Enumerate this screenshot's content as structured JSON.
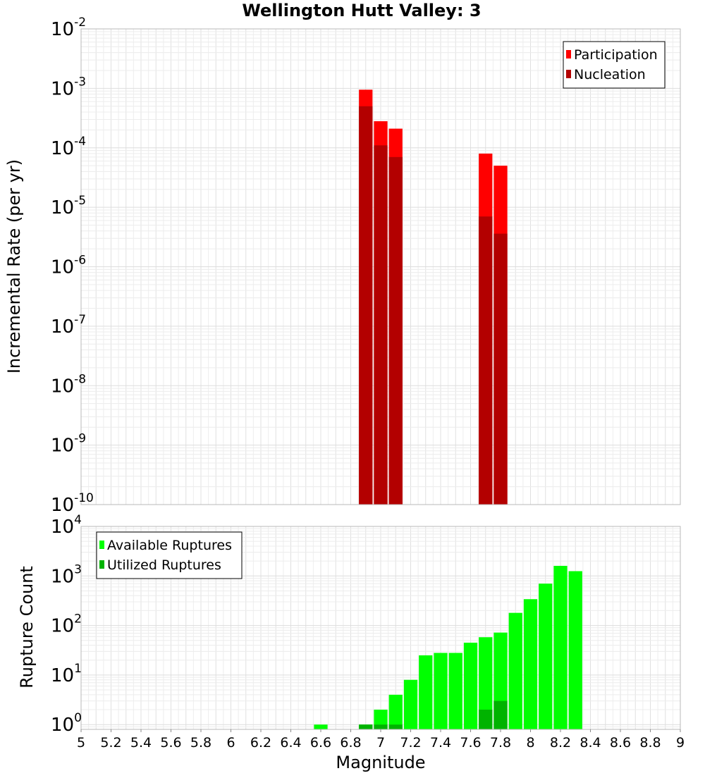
{
  "chart_data": [
    {
      "type": "bar",
      "title": "Wellington Hutt Valley: 3",
      "ylabel": "Incremental Rate (per yr)",
      "yscale": "log",
      "ylim": [
        1e-10,
        0.01
      ],
      "ytick_exponents": [
        -10,
        -9,
        -8,
        -7,
        -6,
        -5,
        -4,
        -3,
        -2
      ],
      "xlim": [
        5,
        9
      ],
      "legend_position": "top-right",
      "bin_width": 0.1,
      "x": [
        6.9,
        7.0,
        7.1,
        7.7,
        7.8
      ],
      "series": [
        {
          "name": "Participation",
          "color": "#ff0000",
          "values": [
            0.00095,
            0.00028,
            0.00021,
            8e-05,
            5e-05
          ]
        },
        {
          "name": "Nucleation",
          "color": "#b30000",
          "values": [
            0.0005,
            0.00011,
            7e-05,
            7e-06,
            3.6e-06
          ]
        }
      ]
    },
    {
      "type": "bar",
      "ylabel": "Rupture Count",
      "yscale": "log",
      "ylim": [
        0.8,
        10000
      ],
      "ytick_exponents": [
        0,
        1,
        2,
        3,
        4
      ],
      "xlabel": "Magnitude",
      "xlim": [
        5,
        9
      ],
      "xticks": [
        "5",
        "5.2",
        "5.4",
        "5.6",
        "5.8",
        "6",
        "6.2",
        "6.4",
        "6.6",
        "6.8",
        "7",
        "7.2",
        "7.4",
        "7.6",
        "7.8",
        "8",
        "8.2",
        "8.4",
        "8.6",
        "8.8",
        "9"
      ],
      "legend_position": "top-left",
      "bin_width": 0.1,
      "x": [
        6.6,
        6.9,
        7.0,
        7.1,
        7.2,
        7.3,
        7.4,
        7.5,
        7.6,
        7.7,
        7.8,
        7.9,
        8.0,
        8.1,
        8.2,
        8.3
      ],
      "series": [
        {
          "name": "Available Ruptures",
          "color": "#00ff00",
          "values": [
            1,
            1,
            2,
            4,
            8,
            25,
            28,
            28,
            45,
            58,
            72,
            180,
            340,
            700,
            1600,
            1250
          ]
        },
        {
          "name": "Utilized Ruptures",
          "color": "#00b300",
          "values": [
            0,
            1,
            1,
            1,
            0,
            0,
            0,
            0,
            0,
            2,
            3,
            0,
            0,
            0,
            0,
            0
          ]
        }
      ]
    }
  ]
}
